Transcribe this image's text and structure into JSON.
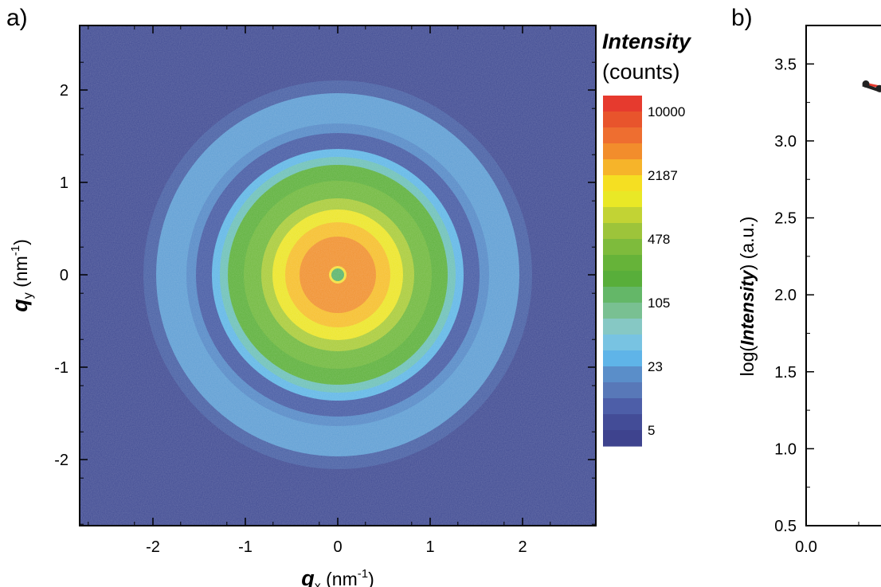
{
  "chart_data": [
    {
      "panel_label": "a)",
      "type": "heatmap",
      "xlabel": {
        "symbol": "q",
        "subscript": "x",
        "unit_base": "nm",
        "unit_exp": "-1"
      },
      "ylabel": {
        "symbol": "q",
        "subscript": "y",
        "unit_base": "nm",
        "unit_exp": "-1"
      },
      "xlim": [
        -2.7,
        2.7
      ],
      "ylim": [
        -2.7,
        2.7
      ],
      "xticks": [
        -2,
        -1,
        0,
        1,
        2
      ],
      "yticks": [
        -2,
        -1,
        0,
        1,
        2
      ],
      "xtick_labels": [
        "-2",
        "-1",
        "0",
        "1",
        "2"
      ],
      "ytick_labels": [
        "-2",
        "-1",
        "0",
        "1",
        "2"
      ],
      "pattern": "isotropic rings centred at origin",
      "colorbar": {
        "title": "Intensity",
        "unit": "(counts)",
        "tick_labels": [
          "10000",
          "2187",
          "478",
          "105",
          "23",
          "5"
        ],
        "colors_top_to_bottom": [
          "#e63a2e",
          "#e8542c",
          "#ee6e30",
          "#f28d2c",
          "#f6b42a",
          "#f5df22",
          "#e9e826",
          "#c2d334",
          "#9dc43a",
          "#7ebb3c",
          "#66b339",
          "#58ae3a",
          "#64b768",
          "#79c092",
          "#86c8c4",
          "#78c3e2",
          "#5fb4e8",
          "#5a8ec9",
          "#5878b8",
          "#4d5ea8",
          "#434c97",
          "#3e438e"
        ]
      }
    },
    {
      "panel_label": "b)",
      "type": "line",
      "ylabel": {
        "prefix": "log(",
        "emph": "Intensity",
        "suffix": ") (a.u.)"
      },
      "ylim": [
        0.5,
        3.75
      ],
      "yticks": [
        0.5,
        1.0,
        1.5,
        2.0,
        2.5,
        3.0,
        3.5
      ],
      "ytick_labels": [
        "0.5",
        "1.0",
        "1.5",
        "2.0",
        "2.5",
        "3.0",
        "3.5"
      ],
      "xtick_labels": [
        "0.0"
      ],
      "series_colors": [
        "#222222",
        "#e63a2e"
      ],
      "visible_points": [
        {
          "x": 0.5,
          "y": 3.37
        },
        {
          "x": 0.6,
          "y": 3.34
        }
      ]
    }
  ]
}
